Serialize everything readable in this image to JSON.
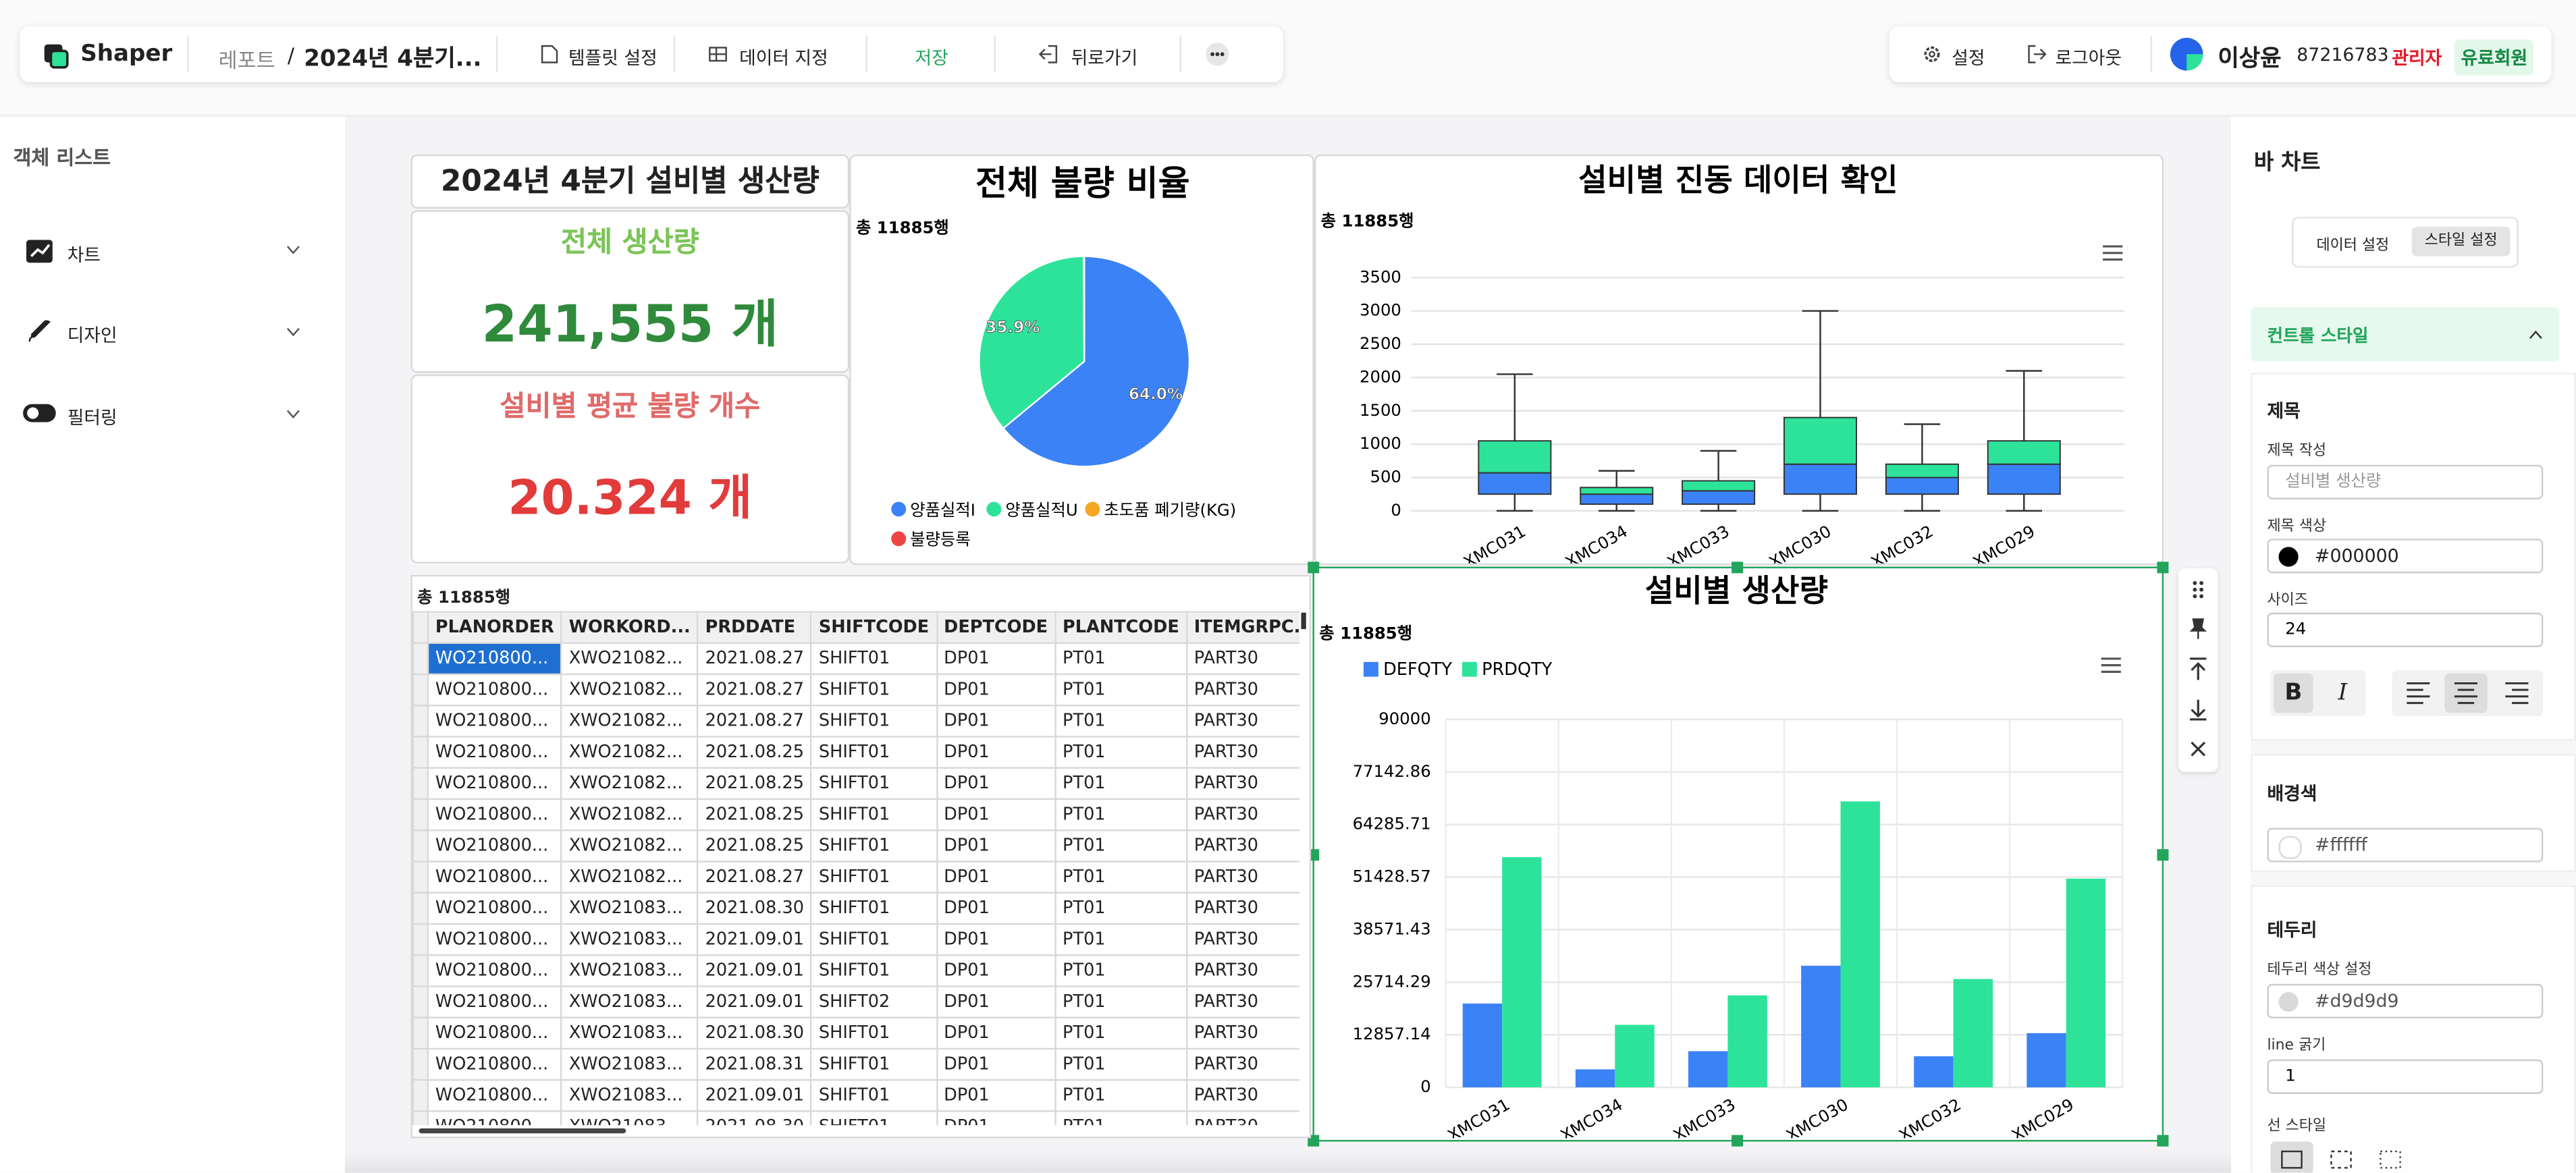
{
  "topbar": {
    "logo": "Shaper",
    "breadcrumb": [
      "레포트",
      "/",
      "2024년 4분기..."
    ],
    "menu": [
      "템플릿 설정",
      "데이터 지정",
      "저장",
      "뒤로가기"
    ],
    "settings": "설정",
    "logout": "로그아웃",
    "user_name": "이상윤",
    "user_id": "87216783",
    "role": "관리자",
    "plan": "유료회원"
  },
  "sidebar": {
    "title": "객체 리스트",
    "items": [
      "차트",
      "디자인",
      "필터링"
    ]
  },
  "panel": {
    "title": "바 차트",
    "tabs": [
      "데이터 설정",
      "스타일 설정"
    ],
    "section": "컨트롤 스타일",
    "title_group": "제목",
    "title_input_label": "제목 작성",
    "title_input_placeholder": "설비별 생산량",
    "title_color_label": "제목 색상",
    "title_color": "#000000",
    "size_label": "사이즈",
    "size": "24",
    "bold": "B",
    "italic": "I",
    "bg_group": "배경색",
    "bg_color": "#ffffff",
    "border_group": "테두리",
    "border_color_label": "테두리 색상 설정",
    "border_color": "#d9d9d9",
    "line_width_label": "line 굵기",
    "line_width": "1",
    "line_style_label": "선 스타일"
  },
  "report_title": "2024년 4분기 설비별 생산량",
  "kpis": [
    {
      "label": "전체 생산량",
      "value": "241,555 개"
    },
    {
      "label": "설비별 평균 불량 개수",
      "value": "20.324 개"
    }
  ],
  "table": {
    "count": "총 11885행",
    "columns": [
      "PLANORDER",
      "WORKORD...",
      "PRDDATE",
      "SHIFTCODE",
      "DEPTCODE",
      "PLANTCODE",
      "ITEMGRPC."
    ],
    "rows": [
      [
        "WO210800...",
        "XWO21082...",
        "2021.08.27",
        "SHIFT01",
        "DP01",
        "PT01",
        "PART30"
      ],
      [
        "WO210800...",
        "XWO21082...",
        "2021.08.27",
        "SHIFT01",
        "DP01",
        "PT01",
        "PART30"
      ],
      [
        "WO210800...",
        "XWO21082...",
        "2021.08.27",
        "SHIFT01",
        "DP01",
        "PT01",
        "PART30"
      ],
      [
        "WO210800...",
        "XWO21082...",
        "2021.08.25",
        "SHIFT01",
        "DP01",
        "PT01",
        "PART30"
      ],
      [
        "WO210800...",
        "XWO21082...",
        "2021.08.25",
        "SHIFT01",
        "DP01",
        "PT01",
        "PART30"
      ],
      [
        "WO210800...",
        "XWO21082...",
        "2021.08.25",
        "SHIFT01",
        "DP01",
        "PT01",
        "PART30"
      ],
      [
        "WO210800...",
        "XWO21082...",
        "2021.08.25",
        "SHIFT01",
        "DP01",
        "PT01",
        "PART30"
      ],
      [
        "WO210800...",
        "XWO21082...",
        "2021.08.27",
        "SHIFT01",
        "DP01",
        "PT01",
        "PART30"
      ],
      [
        "WO210800...",
        "XWO21083...",
        "2021.08.30",
        "SHIFT01",
        "DP01",
        "PT01",
        "PART30"
      ],
      [
        "WO210800...",
        "XWO21083...",
        "2021.09.01",
        "SHIFT01",
        "DP01",
        "PT01",
        "PART30"
      ],
      [
        "WO210800...",
        "XWO21083...",
        "2021.09.01",
        "SHIFT01",
        "DP01",
        "PT01",
        "PART30"
      ],
      [
        "WO210800...",
        "XWO21083...",
        "2021.09.01",
        "SHIFT02",
        "DP01",
        "PT01",
        "PART30"
      ],
      [
        "WO210800...",
        "XWO21083...",
        "2021.08.30",
        "SHIFT01",
        "DP01",
        "PT01",
        "PART30"
      ],
      [
        "WO210800...",
        "XWO21083...",
        "2021.08.31",
        "SHIFT01",
        "DP01",
        "PT01",
        "PART30"
      ],
      [
        "WO210800...",
        "XWO21083...",
        "2021.09.01",
        "SHIFT01",
        "DP01",
        "PT01",
        "PART30"
      ],
      [
        "WO210800...",
        "XWO21083...",
        "2021.08.30",
        "SHIFT01",
        "DP01",
        "PT01",
        "PART30"
      ]
    ]
  },
  "chart_data": [
    {
      "type": "pie",
      "title": "전체 불량 비율",
      "subtitle": "총 11885행",
      "categories": [
        "양품실적I",
        "양품실적U",
        "초도품 폐기량(KG)",
        "불량등록"
      ],
      "values": [
        64.0,
        35.9,
        0.05,
        0.05
      ],
      "value_labels": [
        "64.0%",
        "35.9%",
        null,
        null
      ],
      "colors": [
        "#3b82f6",
        "#2de39a",
        "#f5a623",
        "#ef4444"
      ]
    },
    {
      "type": "box",
      "title": "설비별 진동 데이터 확인",
      "subtitle": "총 11885행",
      "categories": [
        "XMC031",
        "XMC034",
        "XMC033",
        "XMC030",
        "XMC032",
        "XMC029"
      ],
      "values": [
        {
          "min": 0,
          "q1": 250,
          "median": 570,
          "q3": 1050,
          "max": 2050
        },
        {
          "min": 0,
          "q1": 100,
          "median": 250,
          "q3": 350,
          "max": 600
        },
        {
          "min": 0,
          "q1": 100,
          "median": 300,
          "q3": 450,
          "max": 900
        },
        {
          "min": 0,
          "q1": 250,
          "median": 700,
          "q3": 1400,
          "max": 3000
        },
        {
          "min": 0,
          "q1": 250,
          "median": 500,
          "q3": 700,
          "max": 1300
        },
        {
          "min": 0,
          "q1": 250,
          "median": 700,
          "q3": 1050,
          "max": 2100
        }
      ],
      "lower_color": "#3b82f6",
      "upper_color": "#2de39a",
      "ylim": [
        0,
        3500
      ],
      "yticks": [
        0,
        500,
        1000,
        1500,
        2000,
        2500,
        3000,
        3500
      ],
      "grid": true
    },
    {
      "type": "bar",
      "title": "설비별 생산량",
      "subtitle": "총 11885행",
      "categories": [
        "XMC031",
        "XMC034",
        "XMC033",
        "XMC030",
        "XMC032",
        "XMC029"
      ],
      "series": [
        {
          "name": "DEFQTY",
          "color": "#3b82f6",
          "values": [
            20500,
            4400,
            8850,
            29750,
            7600,
            13250
          ]
        },
        {
          "name": "PRDQTY",
          "color": "#2de39a",
          "values": [
            56300,
            15300,
            22500,
            69950,
            26500,
            51050
          ]
        }
      ],
      "ylim": [
        0,
        90000
      ],
      "yticks": [
        0,
        12857.14,
        25714.29,
        38571.43,
        51428.57,
        64285.71,
        77142.86,
        90000
      ],
      "grid": true,
      "legend": "top-left"
    }
  ]
}
